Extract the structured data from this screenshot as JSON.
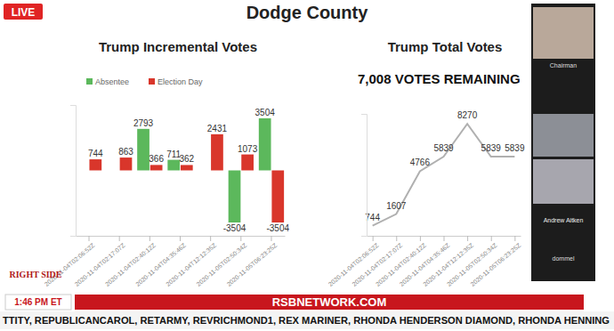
{
  "page": {
    "live_badge": "LIVE",
    "title": "Dodge County",
    "network": "RSBNETWORK.COM",
    "time": "1:46 PM ET",
    "logo": "RIGHT SIDE",
    "ticker": "TTITY, REPUBLICANCAROL, RETARMY, REVRICHMOND1, REX MARINER, RHONDA HENDERSON DIAMOND, RHONDA HENNING",
    "participants": [
      "Chairman",
      "Andrew Aitken",
      "dommel"
    ]
  },
  "chart_data": [
    {
      "type": "bar",
      "title": "Trump Incremental Votes",
      "categories": [
        "2020-11-04T02:06:52Z",
        "2020-11-04T02:17:07Z",
        "2020-11-04T02:40:12Z",
        "2020-11-04T04:35:46Z",
        "2020-11-04T12:12:35Z",
        "2020-11-05T02:50:34Z",
        "2020-11-05T06:23:25Z"
      ],
      "series": [
        {
          "name": "Absentee",
          "color": "#5cb85c",
          "values": [
            null,
            null,
            2793,
            711,
            null,
            -3504,
            3504
          ]
        },
        {
          "name": "Election Day",
          "color": "#d9362b",
          "values": [
            744,
            863,
            366,
            362,
            2431,
            1073,
            -3504
          ]
        }
      ],
      "ylim": [
        -4400,
        4400
      ],
      "yticks": [],
      "data_labels": true,
      "tick_labels": "x",
      "legend": "top-left"
    },
    {
      "type": "line",
      "title": "Trump Total Votes",
      "annotation": "7,008 VOTES REMAINING",
      "categories": [
        "2020-11-04T02:06:52Z",
        "2020-11-04T02:17:07Z",
        "2020-11-04T02:40:12Z",
        "2020-11-04T04:35:46Z",
        "2020-11-04T12:12:35Z",
        "2020-11-05T02:50:34Z",
        "2020-11-05T06:23:25Z"
      ],
      "values": [
        744,
        1607,
        4766,
        5839,
        8270,
        5839,
        5839
      ],
      "color": "#b0b0b0",
      "ylim": [
        0,
        9000
      ],
      "yticks": [],
      "data_labels": true,
      "tick_labels": "x"
    }
  ]
}
